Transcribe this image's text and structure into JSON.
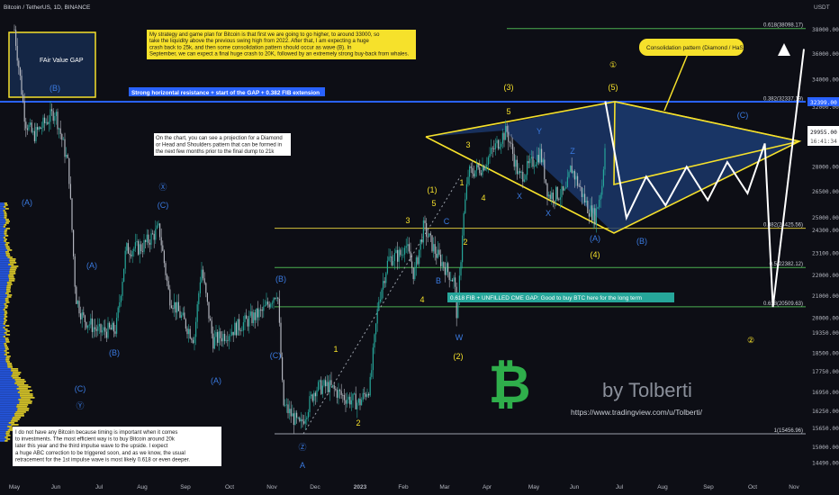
{
  "header": {
    "symbol_line": "Bitcoin / TetherUS, 1D, BINANCE",
    "currency": "USDT"
  },
  "price_axis": {
    "ticks": [
      "38000.00",
      "36000.00",
      "34000.00",
      "32000.00",
      "30000.00",
      "28000.00",
      "26500.00",
      "25000.00",
      "24300.00",
      "23100.00",
      "22000.00",
      "21000.00",
      "20000.00",
      "19350.00",
      "18500.00",
      "17750.00",
      "16950.00",
      "16250.00",
      "15650.00",
      "15000.00",
      "14490.00"
    ],
    "last_price": "29955.00",
    "countdown": "16:41:34",
    "resistance_tag": "32399.00"
  },
  "time_axis": {
    "ticks": [
      "May",
      "Jun",
      "Jul",
      "Aug",
      "Sep",
      "Oct",
      "Nov",
      "Dec",
      "2023",
      "Feb",
      "Mar",
      "Apr",
      "May",
      "Jun",
      "Jul",
      "Aug",
      "Sep",
      "Oct",
      "Nov"
    ]
  },
  "annotations": {
    "strategy_note": [
      "My strategy and game plan for Bitcoin is that first we are going to go higher, to around 33000, so",
      "take the liquidity above the previous swing high from 2022. After that, I am expecting a huge",
      "crash back to 25k, and then some consolidation pattern should occur as wave (B). In",
      "September, we can expect a final huge crash to 20K, followed by an extremely strong buy-back from whales."
    ],
    "projection_note": [
      "On the chart, you can see a projection for a Diamond",
      "or Head and Shoulders pattern that can be formed in",
      "the next few months prior to the final dump to 21k"
    ],
    "bottom_note": [
      "I do not have any Bitcoin because timing is important when it comes",
      "to investments. The most efficient way is to buy Bitcoin around 20k",
      "later this year and the third impulse wave to the upside. I expect",
      "a huge ABC correction to be triggered soon, and as we know, the usual",
      "retracement for the 1st impulse wave is most likely 0.618 or even deeper."
    ],
    "fvg_label": "FAir Value GAP",
    "resistance_label": "Strong horizontal resistance + start of the GAP + 0.382 FIB extension",
    "cme_label": "0.618 FIB + UNFILLED CME GAP: Good to buy BTC here for the long term",
    "consolidation_label": "Consolidation pattern (Diamond / HaS)",
    "author": "by Tolberti",
    "url": "https://www.tradingview.com/u/Tolberti/"
  },
  "fib_levels": [
    {
      "label": "0.618(38098.17)"
    },
    {
      "label": "0.382(32337.19)"
    },
    {
      "label": "0.382(24425.56)"
    },
    {
      "label": "0.5(22382.12)"
    },
    {
      "label": "0.618(20509.63)"
    },
    {
      "label": "1(15456.96)"
    }
  ],
  "wave_labels_yellow": [
    "(3)",
    "3",
    "5",
    "1",
    "5",
    "(1)",
    "3",
    "4",
    "2",
    "4",
    "(2)",
    "1",
    "2",
    "(4)",
    "(5)",
    "①",
    "②"
  ],
  "wave_labels_blue": [
    "(B)",
    "(A)",
    "Ⓧ",
    "(C)",
    "(A)",
    "(B)",
    "(A)",
    "(C)",
    "Ⓨ",
    "(B)",
    "(C)",
    "Ⓩ",
    "A",
    "B",
    "C",
    "W",
    "X",
    "Y",
    "X",
    "Z",
    "(A)",
    "(B)",
    "(C)"
  ],
  "colors": {
    "background": "#0d0e15",
    "up_candle": "#26a69a",
    "down_candle": "#b2b5be",
    "yellow": "#f6e12b",
    "blue_wave": "#2f6fd6",
    "fib_green": "#4caf50",
    "resistance": "#2962ff",
    "pattern_fill": "#1c3a6e"
  },
  "chart_data": {
    "type": "candlestick",
    "x": [
      "2022-05",
      "2022-06",
      "2022-07",
      "2022-08",
      "2022-09",
      "2022-10",
      "2022-11",
      "2022-12",
      "2023-01",
      "2023-02",
      "2023-03",
      "2023-04",
      "2023-05",
      "2023-06",
      "2023-07",
      "2023-08",
      "2023-09",
      "2023-10",
      "2023-11"
    ],
    "close_path": [
      [
        "2022-05-01",
        38000
      ],
      [
        "2022-05-09",
        31000
      ],
      [
        "2022-05-15",
        30000
      ],
      [
        "2022-05-31",
        31700
      ],
      [
        "2022-06-10",
        28000
      ],
      [
        "2022-06-15",
        21000
      ],
      [
        "2022-06-20",
        20000
      ],
      [
        "2022-07-01",
        19400
      ],
      [
        "2022-07-13",
        19500
      ],
      [
        "2022-07-20",
        23300
      ],
      [
        "2022-07-31",
        23400
      ],
      [
        "2022-08-13",
        24400
      ],
      [
        "2022-08-20",
        21000
      ],
      [
        "2022-09-07",
        19100
      ],
      [
        "2022-09-12",
        22400
      ],
      [
        "2022-09-20",
        19000
      ],
      [
        "2022-10-01",
        19400
      ],
      [
        "2022-10-25",
        20300
      ],
      [
        "2022-11-05",
        21300
      ],
      [
        "2022-11-09",
        16500
      ],
      [
        "2022-11-21",
        15700
      ],
      [
        "2022-12-01",
        17100
      ],
      [
        "2022-12-10",
        17200
      ],
      [
        "2022-12-20",
        16800
      ],
      [
        "2022-12-31",
        16550
      ],
      [
        "2023-01-08",
        17200
      ],
      [
        "2023-01-14",
        20800
      ],
      [
        "2023-01-21",
        22800
      ],
      [
        "2023-01-31",
        23100
      ],
      [
        "2023-02-02",
        23800
      ],
      [
        "2023-02-09",
        22000
      ],
      [
        "2023-02-16",
        24500
      ],
      [
        "2023-02-25",
        23100
      ],
      [
        "2023-03-08",
        21700
      ],
      [
        "2023-03-10",
        19900
      ],
      [
        "2023-03-14",
        24600
      ],
      [
        "2023-03-18",
        27600
      ],
      [
        "2023-03-28",
        28000
      ],
      [
        "2023-04-11",
        30000
      ],
      [
        "2023-04-14",
        30300
      ],
      [
        "2023-04-22",
        27300
      ],
      [
        "2023-05-06",
        28900
      ],
      [
        "2023-05-12",
        26300
      ],
      [
        "2023-05-25",
        26400
      ],
      [
        "2023-05-29",
        28000
      ],
      [
        "2023-06-10",
        25600
      ],
      [
        "2023-06-15",
        25050
      ],
      [
        "2023-06-20",
        27000
      ],
      [
        "2023-06-22",
        30000
      ]
    ],
    "projection": [
      [
        "2023-06-22",
        32400
      ],
      [
        "2023-07-06",
        25000
      ],
      [
        "2023-07-20",
        27400
      ],
      [
        "2023-08-03",
        25700
      ],
      [
        "2023-08-17",
        28000
      ],
      [
        "2023-08-31",
        26000
      ],
      [
        "2023-09-14",
        28300
      ],
      [
        "2023-09-28",
        26400
      ],
      [
        "2023-10-10",
        29500
      ],
      [
        "2023-10-16",
        20500
      ],
      [
        "2023-11-08",
        36400
      ]
    ],
    "fib_values": [
      38098.17,
      32337.19,
      24425.56,
      22382.12,
      20509.63,
      15456.96
    ],
    "horizontal_resistance": 32399.0,
    "y_scale": "log",
    "ylim": [
      14300,
      40500
    ],
    "grid": false
  }
}
